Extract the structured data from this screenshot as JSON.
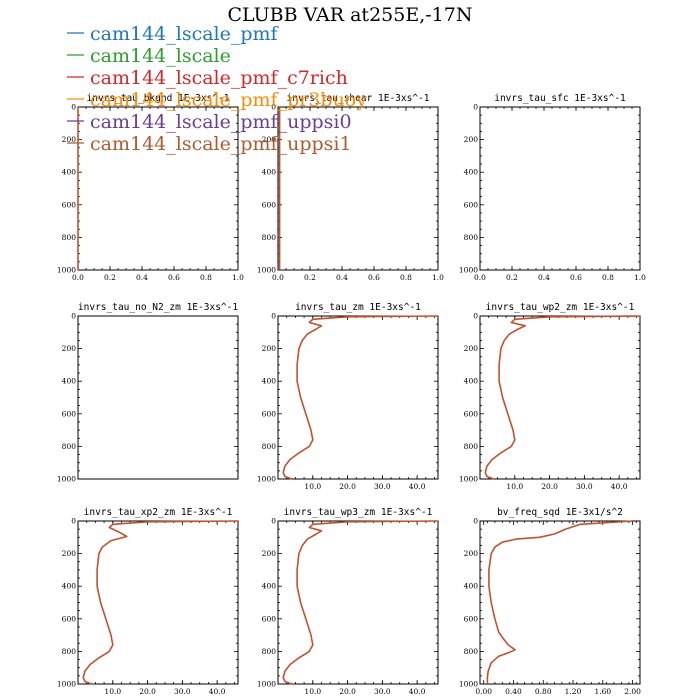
{
  "figure": {
    "title": "CLUBB VAR at255E,-17N"
  },
  "legend": [
    {
      "name": "cam144_lscale_pmf",
      "color": "#1f77b4"
    },
    {
      "name": "cam144_lscale",
      "color": "#2ca02c"
    },
    {
      "name": "cam144_lscale_pmf_c7rich",
      "color": "#d62728"
    },
    {
      "name": "cam144_lscale_pmf_pr3buoy",
      "color": "#ff8c00"
    },
    {
      "name": "cam144_lscale_pmf_uppsi0",
      "color": "#6a3d9a"
    },
    {
      "name": "cam144_lscale_pmf_uppsi1",
      "color": "#b05a2e"
    }
  ],
  "chart_data": [
    {
      "type": "line",
      "title": "invrs_tau_bkgnd   1E-3xs^-1",
      "xlim": [
        0,
        1
      ],
      "ylim": [
        1000,
        0
      ],
      "xticks": [
        "0.0",
        "0.2",
        "0.4",
        "0.6",
        "0.8",
        "1.0"
      ],
      "yticks": [
        "0",
        "200",
        "400",
        "600",
        "800",
        "1000"
      ],
      "series": [
        {
          "y": [
            0,
            1000
          ],
          "x": [
            0,
            0
          ]
        }
      ]
    },
    {
      "type": "line",
      "title": "invrs_tau_shear   1E-3xs^-1",
      "xlim": [
        0,
        1
      ],
      "ylim": [
        1000,
        0
      ],
      "xticks": [
        "0.0",
        "0.2",
        "0.4",
        "0.6",
        "0.8",
        "1.0"
      ],
      "yticks": [
        "0",
        "200",
        "400",
        "600",
        "800",
        "1000"
      ],
      "series": [
        {
          "y": [
            0,
            1000
          ],
          "x": [
            0.01,
            0.01
          ]
        }
      ]
    },
    {
      "type": "line",
      "title": "invrs_tau_sfc   1E-3xs^-1",
      "xlim": [
        0,
        1
      ],
      "ylim": [
        1000,
        0
      ],
      "xticks": [
        "0.0",
        "0.2",
        "0.4",
        "0.6",
        "0.8",
        "1.0"
      ],
      "yticks": [
        "0",
        "200",
        "400",
        "600",
        "800",
        "1000"
      ],
      "series": []
    },
    {
      "type": "line",
      "title": "invrs_tau_no_N2_zm   1E-3xs^-1",
      "xlim": [
        0,
        1
      ],
      "ylim": [
        1000,
        0
      ],
      "xticks": [],
      "yticks": [
        "0",
        "200",
        "400",
        "600",
        "800",
        "1000"
      ],
      "series": []
    },
    {
      "type": "line",
      "title": "invrs_tau_zm   1E-3xs^-1",
      "xlim": [
        0,
        46
      ],
      "ylim": [
        1000,
        0
      ],
      "xticks": [
        "10.0",
        "20.0",
        "30.0",
        "40.0"
      ],
      "xtick_values": [
        10,
        20,
        30,
        40
      ],
      "yticks": [
        "0",
        "200",
        "400",
        "600",
        "800",
        "1000"
      ],
      "series": [
        {
          "y": [
            0,
            5,
            20,
            40,
            60,
            80,
            110,
            150,
            200,
            300,
            400,
            500,
            600,
            700,
            760,
            800,
            840,
            880,
            920,
            960,
            985,
            1000
          ],
          "x": [
            46,
            20,
            10,
            9,
            12.5,
            11,
            8.5,
            7,
            6,
            5.5,
            5.5,
            6.5,
            8,
            9.5,
            10,
            9,
            6,
            3.5,
            2,
            1.5,
            2,
            4
          ]
        }
      ]
    },
    {
      "type": "line",
      "title": "invrs_tau_wp2_zm   1E-3xs^-1",
      "xlim": [
        0,
        46
      ],
      "ylim": [
        1000,
        0
      ],
      "xticks": [
        "10.0",
        "20.0",
        "30.0",
        "40.0"
      ],
      "xtick_values": [
        10,
        20,
        30,
        40
      ],
      "yticks": [
        "0",
        "200",
        "400",
        "600",
        "800",
        "1000"
      ],
      "series": [
        {
          "y": [
            0,
            5,
            20,
            40,
            60,
            80,
            110,
            150,
            200,
            300,
            400,
            500,
            600,
            700,
            760,
            800,
            840,
            880,
            920,
            960,
            985,
            1000
          ],
          "x": [
            46,
            20,
            10,
            9,
            13,
            11,
            8.5,
            7,
            6,
            5.5,
            5.5,
            6.5,
            8,
            9.5,
            10,
            9,
            6,
            3.5,
            2,
            1.5,
            2,
            4
          ]
        }
      ]
    },
    {
      "type": "line",
      "title": "invrs_tau_xp2_zm   1E-3xs^-1",
      "xlim": [
        0,
        46
      ],
      "ylim": [
        1000,
        0
      ],
      "xticks": [
        "10.0",
        "20.0",
        "30.0",
        "40.0"
      ],
      "xtick_values": [
        10,
        20,
        30,
        40
      ],
      "yticks": [
        "0",
        "200",
        "400",
        "600",
        "800",
        "1000"
      ],
      "series": [
        {
          "y": [
            0,
            5,
            20,
            40,
            70,
            95,
            120,
            160,
            200,
            300,
            400,
            500,
            600,
            700,
            760,
            800,
            840,
            880,
            920,
            960,
            985,
            1000
          ],
          "x": [
            46,
            20,
            10,
            9,
            12,
            14,
            9.5,
            7,
            6,
            5.5,
            5.5,
            6.5,
            8,
            9.5,
            10,
            9,
            6,
            3.5,
            2,
            1.5,
            2,
            4
          ]
        }
      ]
    },
    {
      "type": "line",
      "title": "invrs_tau_wp3_zm   1E-3xs^-1",
      "xlim": [
        0,
        46
      ],
      "ylim": [
        1000,
        0
      ],
      "xticks": [
        "10.0",
        "20.0",
        "30.0",
        "40.0"
      ],
      "xtick_values": [
        10,
        20,
        30,
        40
      ],
      "yticks": [
        "0",
        "200",
        "400",
        "600",
        "800",
        "1000"
      ],
      "series": [
        {
          "y": [
            0,
            5,
            20,
            40,
            60,
            80,
            110,
            150,
            200,
            300,
            400,
            500,
            600,
            700,
            760,
            800,
            840,
            880,
            920,
            960,
            985,
            1000
          ],
          "x": [
            46,
            20,
            10,
            9,
            12.5,
            11,
            8.5,
            7,
            6,
            5.5,
            5.5,
            6.5,
            8,
            9.5,
            10,
            9,
            6,
            3.5,
            2,
            1.5,
            2,
            4
          ]
        }
      ]
    },
    {
      "type": "line",
      "title": "bv_freq_sqd   1E-3x1/s^2",
      "xlim": [
        -0.05,
        2.1
      ],
      "ylim": [
        1000,
        0
      ],
      "xticks": [
        "0.00",
        "0.40",
        "0.80",
        "1.20",
        "1.60",
        "2.00"
      ],
      "xtick_values": [
        0,
        0.4,
        0.8,
        1.2,
        1.6,
        2.0
      ],
      "yticks": [
        "0",
        "200",
        "400",
        "600",
        "800",
        "1000"
      ],
      "series": [
        {
          "y": [
            0,
            20,
            50,
            80,
            100,
            110,
            130,
            160,
            200,
            300,
            400,
            500,
            600,
            680,
            720,
            760,
            790,
            805,
            830,
            870,
            920,
            960,
            985,
            1000
          ],
          "x": [
            2.0,
            1.3,
            1.1,
            0.95,
            0.75,
            0.45,
            0.25,
            0.15,
            0.1,
            0.07,
            0.07,
            0.1,
            0.15,
            0.2,
            0.26,
            0.33,
            0.42,
            0.35,
            0.2,
            0.1,
            0.06,
            0.05,
            0.05,
            0.05
          ]
        }
      ]
    }
  ]
}
